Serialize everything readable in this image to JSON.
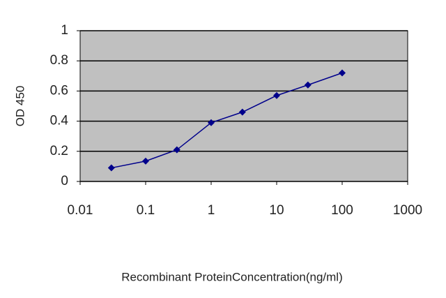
{
  "chart_data": {
    "type": "line",
    "xlabel": "Recombinant ProteinConcentration(ng/ml)",
    "ylabel": "OD 450",
    "x": [
      0.03,
      0.1,
      0.3,
      1,
      3,
      10,
      30,
      100
    ],
    "values": [
      0.09,
      0.135,
      0.21,
      0.39,
      0.46,
      0.57,
      0.64,
      0.72
    ],
    "color": "#00008b",
    "xscale": "log",
    "xlim": [
      0.01,
      1000
    ],
    "xticks": [
      0.01,
      0.1,
      1,
      10,
      100,
      1000
    ],
    "ylim": [
      0,
      1
    ],
    "yticks": [
      0,
      0.2,
      0.4,
      0.6,
      0.8,
      1
    ],
    "grid": true,
    "plot_background": "#c0c0c0"
  }
}
